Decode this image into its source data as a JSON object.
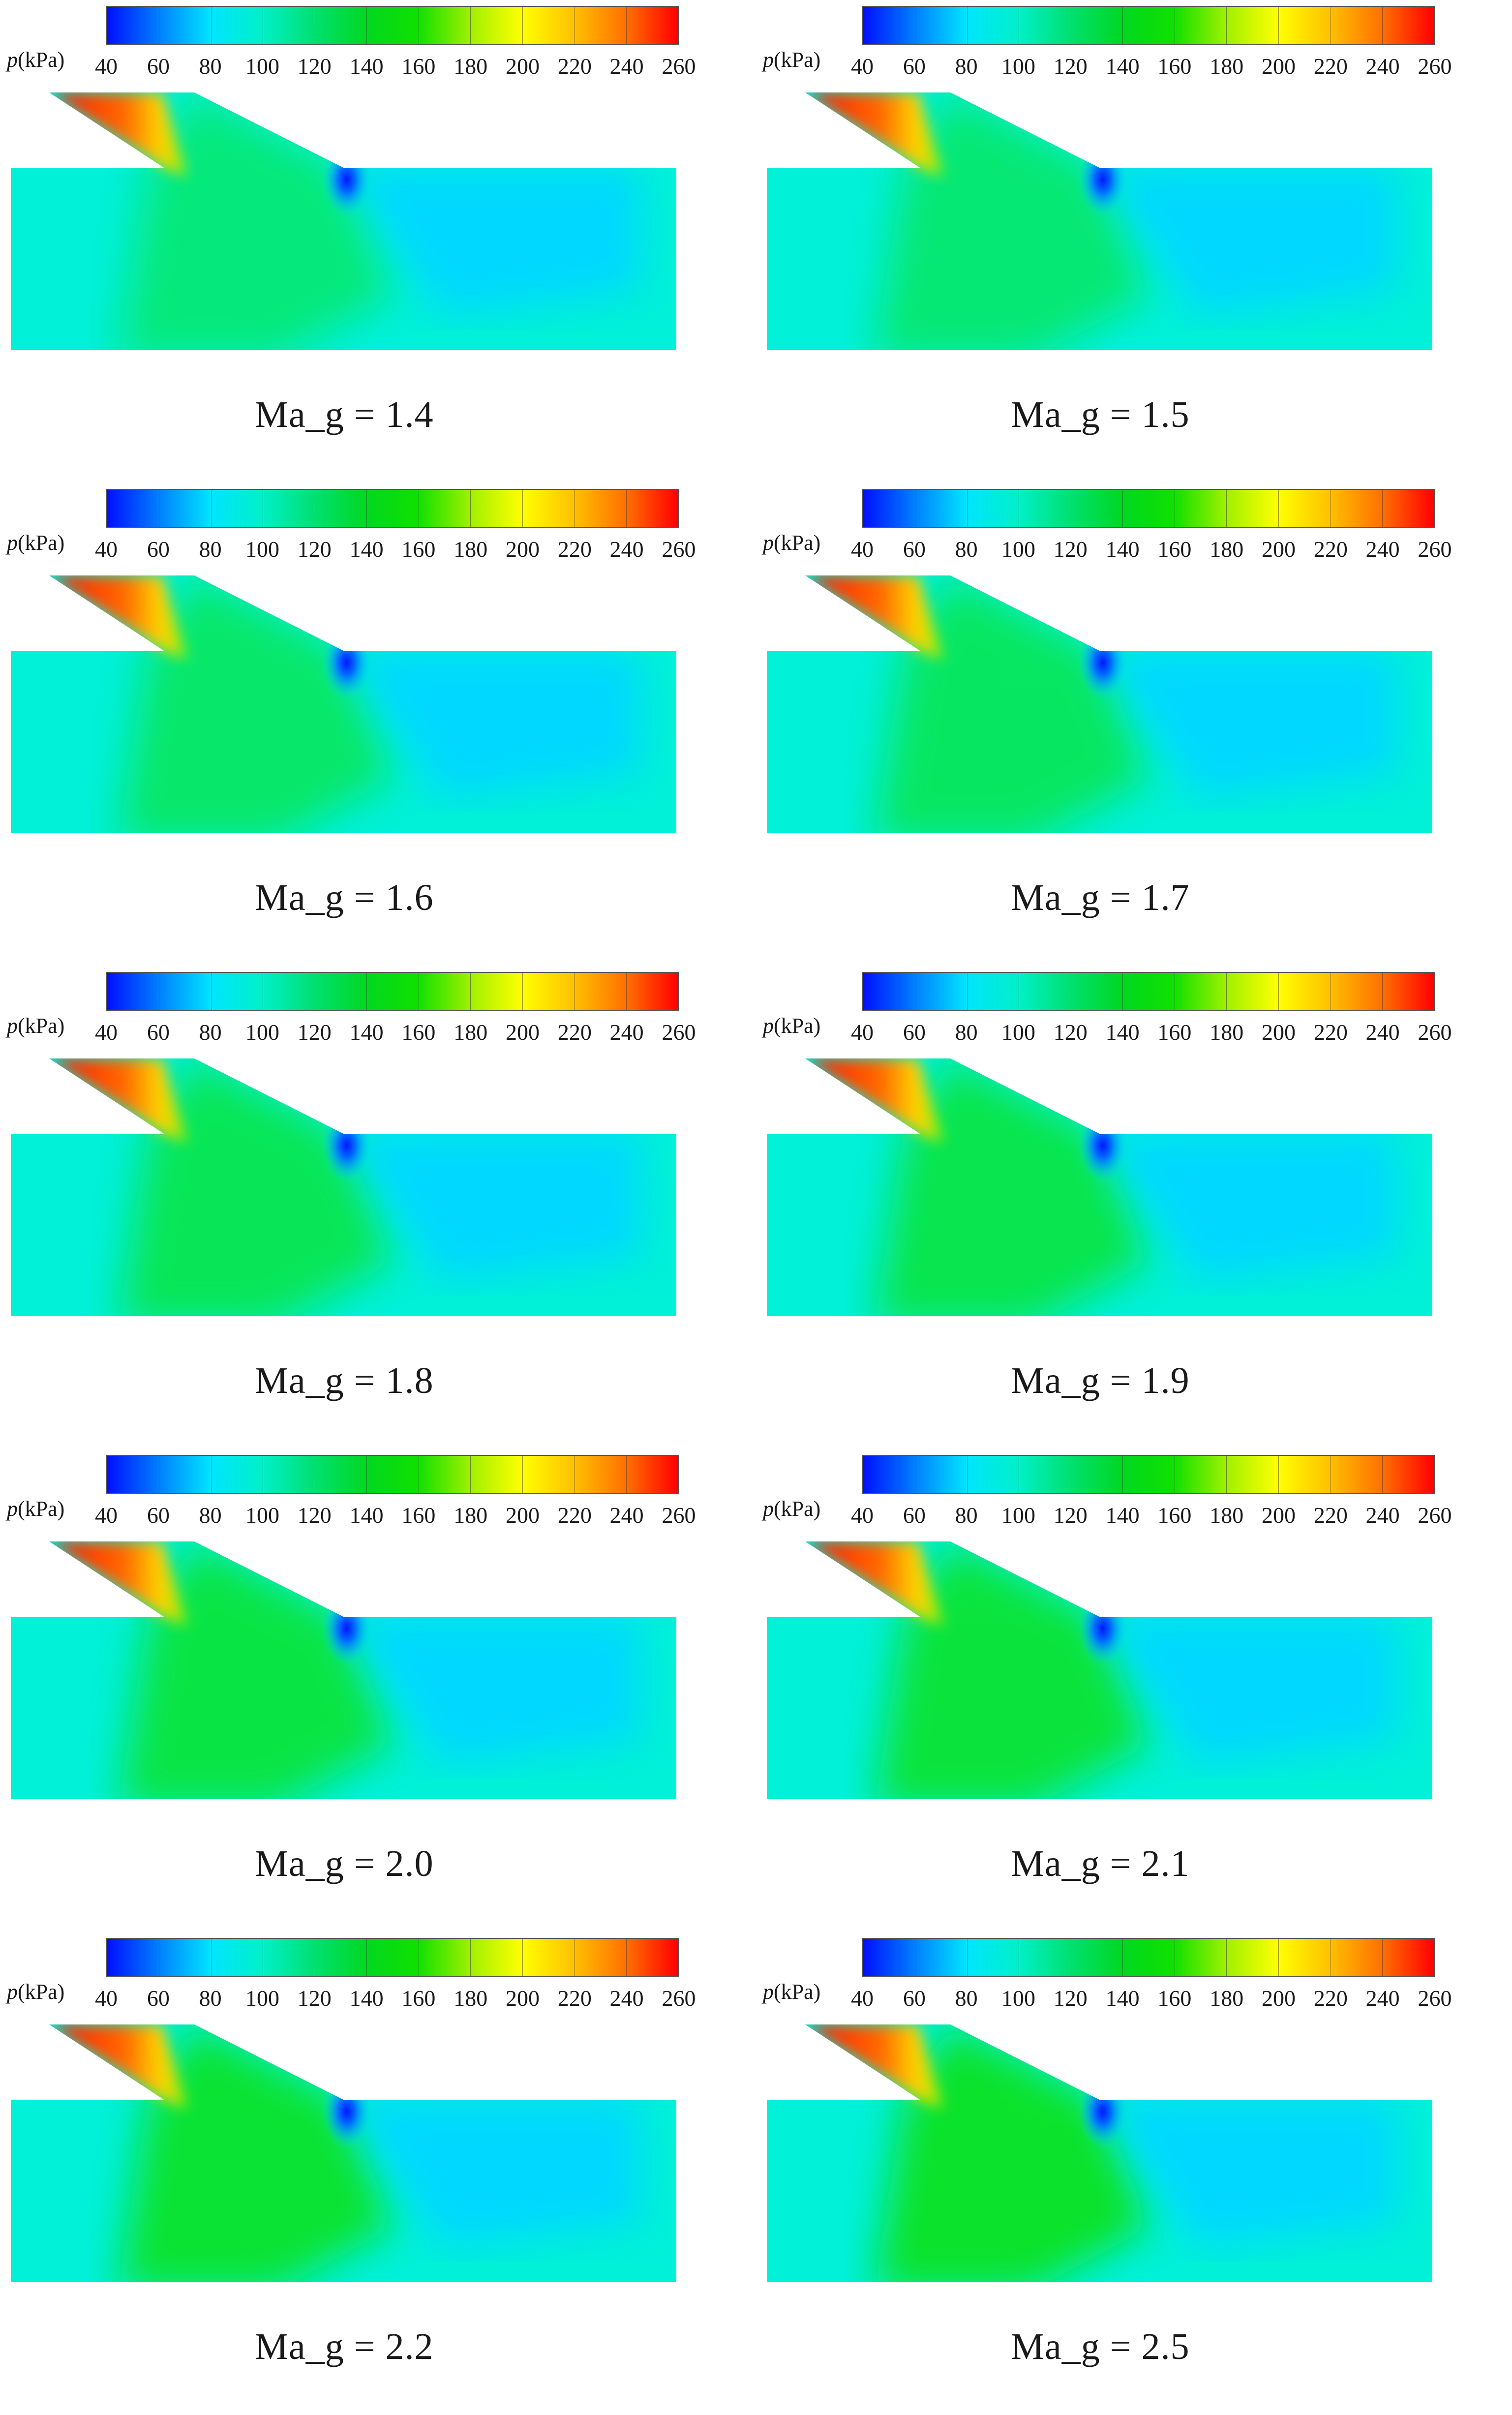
{
  "colorbar": {
    "label_var": "p",
    "label_unit": "(kPa)",
    "ticks": [
      "40",
      "60",
      "80",
      "100",
      "120",
      "140",
      "160",
      "180",
      "200",
      "220",
      "240",
      "260"
    ],
    "colors": [
      "#0010ff",
      "#0080ff",
      "#00e5ff",
      "#00f0c8",
      "#00e070",
      "#00d820",
      "#10e000",
      "#a0f000",
      "#ffff00",
      "#ffc000",
      "#ff7000",
      "#ff0000"
    ]
  },
  "field_colors": {
    "background": "#00f0d8",
    "low_pressure": "#0018ff",
    "expansion": "#00d8ff",
    "compression": "#10e010",
    "inlet_high": "#ff1000"
  },
  "panels": [
    {
      "caption": "Ma_g = 1.4"
    },
    {
      "caption": "Ma_g = 1.5"
    },
    {
      "caption": "Ma_g = 1.6"
    },
    {
      "caption": "Ma_g = 1.7"
    },
    {
      "caption": "Ma_g = 1.8"
    },
    {
      "caption": "Ma_g = 1.9"
    },
    {
      "caption": "Ma_g = 2.0"
    },
    {
      "caption": "Ma_g = 2.1"
    },
    {
      "caption": "Ma_g = 2.2"
    },
    {
      "caption": "Ma_g = 2.5"
    }
  ]
}
